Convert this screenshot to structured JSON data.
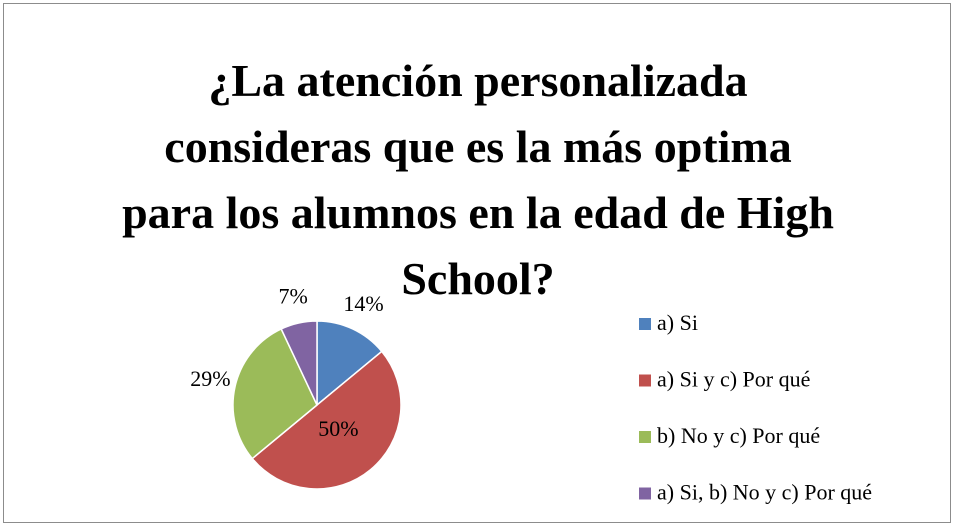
{
  "chart_data": {
    "type": "pie",
    "title": "¿La atención personalizada consideras que es la más optima para los alumnos en la edad de High School?",
    "categories": [
      "a) Si",
      "a) Si y c) Por qué",
      "b) No y c) Por qué",
      "a) Si, b) No y c) Por qué"
    ],
    "values": [
      14,
      50,
      29,
      7
    ],
    "value_labels": [
      "14%",
      "50%",
      "29%",
      "7%"
    ],
    "colors": [
      "#4f81bd",
      "#c0504d",
      "#9bbb59",
      "#8064a2"
    ],
    "legend": "right"
  }
}
